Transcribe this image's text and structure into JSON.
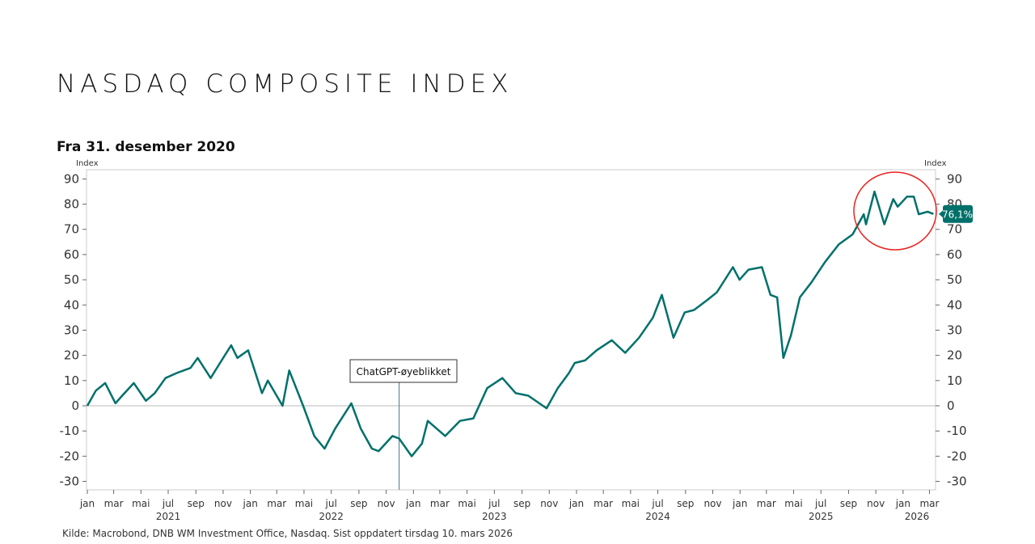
{
  "title": "NASDAQ COMPOSITE INDEX",
  "subtitle": "Fra 31. desember 2020",
  "source": "Kilde: Macrobond, DNB WM Investment Office, Nasdaq. Sist oppdatert tirsdag 10. mars 2026",
  "chart_data": {
    "type": "line",
    "ylabel_left": "Index",
    "ylabel_right": "Index",
    "ylim": [
      -33,
      93
    ],
    "yticks": [
      -30,
      -20,
      -10,
      0,
      10,
      20,
      30,
      40,
      50,
      60,
      70,
      80,
      90
    ],
    "xlim": [
      "2021-01-01",
      "2026-03-20"
    ],
    "month_labels": [
      "jan",
      "mar",
      "mai",
      "jul",
      "sep",
      "nov"
    ],
    "year_labels": [
      "2021",
      "2022",
      "2023",
      "2024",
      "2025",
      "2026"
    ],
    "series_color": "#00706b",
    "end_label": "76,1%",
    "annotation": {
      "text": "ChatGPT-øyeblikket",
      "date": "2022-11-30"
    },
    "highlight_color": "#e8231e",
    "points": [
      [
        "2021-01-01",
        0
      ],
      [
        "2021-01-20",
        6
      ],
      [
        "2021-02-10",
        9
      ],
      [
        "2021-03-05",
        1
      ],
      [
        "2021-03-20",
        4
      ],
      [
        "2021-04-15",
        9
      ],
      [
        "2021-05-12",
        2
      ],
      [
        "2021-06-01",
        5
      ],
      [
        "2021-06-25",
        11
      ],
      [
        "2021-07-20",
        13
      ],
      [
        "2021-08-20",
        15
      ],
      [
        "2021-09-05",
        19
      ],
      [
        "2021-10-04",
        11
      ],
      [
        "2021-10-25",
        17
      ],
      [
        "2021-11-19",
        24
      ],
      [
        "2021-12-03",
        19
      ],
      [
        "2021-12-27",
        22
      ],
      [
        "2022-01-27",
        5
      ],
      [
        "2022-02-09",
        10
      ],
      [
        "2022-03-14",
        0
      ],
      [
        "2022-03-29",
        14
      ],
      [
        "2022-04-29",
        0
      ],
      [
        "2022-05-24",
        -12
      ],
      [
        "2022-06-16",
        -17
      ],
      [
        "2022-07-10",
        -9
      ],
      [
        "2022-08-15",
        1
      ],
      [
        "2022-09-05",
        -9
      ],
      [
        "2022-09-30",
        -17
      ],
      [
        "2022-10-15",
        -18
      ],
      [
        "2022-11-15",
        -12
      ],
      [
        "2022-11-30",
        -13
      ],
      [
        "2022-12-28",
        -20
      ],
      [
        "2023-01-20",
        -15
      ],
      [
        "2023-02-02",
        -6
      ],
      [
        "2023-03-13",
        -12
      ],
      [
        "2023-04-15",
        -6
      ],
      [
        "2023-05-15",
        -5
      ],
      [
        "2023-06-15",
        7
      ],
      [
        "2023-07-19",
        11
      ],
      [
        "2023-08-18",
        5
      ],
      [
        "2023-09-15",
        4
      ],
      [
        "2023-10-26",
        -1
      ],
      [
        "2023-11-20",
        7
      ],
      [
        "2023-12-15",
        13
      ],
      [
        "2023-12-28",
        17
      ],
      [
        "2024-01-20",
        18
      ],
      [
        "2024-02-15",
        22
      ],
      [
        "2024-03-20",
        26
      ],
      [
        "2024-04-19",
        21
      ],
      [
        "2024-05-20",
        27
      ],
      [
        "2024-06-20",
        35
      ],
      [
        "2024-07-10",
        44
      ],
      [
        "2024-08-05",
        27
      ],
      [
        "2024-08-30",
        37
      ],
      [
        "2024-09-20",
        38
      ],
      [
        "2024-10-20",
        42
      ],
      [
        "2024-11-10",
        45
      ],
      [
        "2024-12-16",
        55
      ],
      [
        "2024-12-31",
        50
      ],
      [
        "2025-01-20",
        54
      ],
      [
        "2025-02-19",
        55
      ],
      [
        "2025-03-10",
        44
      ],
      [
        "2025-03-25",
        43
      ],
      [
        "2025-04-08",
        19
      ],
      [
        "2025-04-25",
        28
      ],
      [
        "2025-05-15",
        43
      ],
      [
        "2025-06-10",
        49
      ],
      [
        "2025-07-10",
        57
      ],
      [
        "2025-08-10",
        64
      ],
      [
        "2025-09-10",
        68
      ],
      [
        "2025-10-05",
        76
      ],
      [
        "2025-10-10",
        72
      ],
      [
        "2025-10-29",
        85
      ],
      [
        "2025-11-20",
        72
      ],
      [
        "2025-12-10",
        82
      ],
      [
        "2025-12-20",
        79
      ],
      [
        "2026-01-10",
        83
      ],
      [
        "2026-01-25",
        83
      ],
      [
        "2026-02-05",
        76
      ],
      [
        "2026-02-25",
        77
      ],
      [
        "2026-03-10",
        76.1
      ]
    ]
  }
}
